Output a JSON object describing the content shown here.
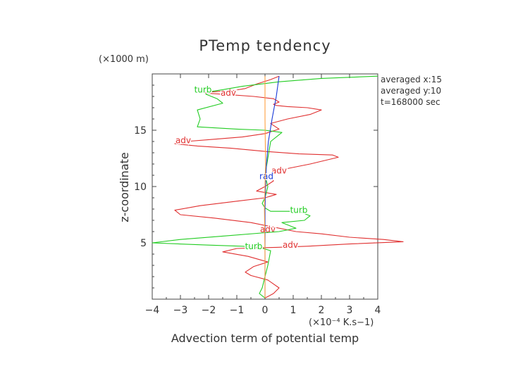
{
  "chart_data": {
    "type": "line",
    "title": "PTemp tendency",
    "xlabel": "Advection term of potential temp",
    "ylabel": "z-coordinate",
    "x_unit": "(×10⁻⁴ K.s−1)",
    "y_unit": "(×1000 m)",
    "xlim": [
      -4,
      4
    ],
    "ylim": [
      0,
      20
    ],
    "x_ticks": [
      "−4",
      "−3",
      "−2",
      "−1",
      "0",
      "1",
      "2",
      "3",
      "4"
    ],
    "y_ticks": [
      "5",
      "10",
      "15"
    ],
    "info": [
      "averaged  x:15",
      "averaged  y:10",
      "t=168000 sec"
    ],
    "series": [
      {
        "name": "adv",
        "color": "#e03030",
        "x": [
          0.5,
          0.2,
          -0.3,
          -0.7,
          -1.2,
          -1.9,
          -2.2,
          -1.5,
          -0.4,
          0.3,
          0.5,
          0.3,
          0.4,
          0.8,
          1.5,
          2.0,
          1.6,
          0.8,
          0.2,
          0.5,
          0.0,
          -0.8,
          -1.8,
          -2.8,
          -3.2,
          -2.4,
          -1.2,
          0.1,
          1.2,
          2.4,
          2.6,
          1.6,
          0.6,
          0.2,
          0.3,
          0.0,
          -0.3,
          0.4,
          0.0,
          -1.0,
          -2.3,
          -3.2,
          -3.0,
          -1.8,
          -0.5,
          0.3,
          1.1,
          2.0,
          3.0,
          4.2,
          4.9,
          3.0,
          1.5,
          0.4,
          -1.0,
          -1.5,
          -0.6,
          0.1,
          -0.4,
          -0.7,
          -0.5,
          0.1,
          0.5,
          0.3,
          0.0
        ],
        "y": [
          19.8,
          19.5,
          19.1,
          18.7,
          18.5,
          18.4,
          18.3,
          18.2,
          18.0,
          17.8,
          17.5,
          17.3,
          17.2,
          17.1,
          17.0,
          16.8,
          16.4,
          16.0,
          15.6,
          15.1,
          14.7,
          14.4,
          14.2,
          14.0,
          13.8,
          13.6,
          13.4,
          13.1,
          12.9,
          12.8,
          12.6,
          12.0,
          11.5,
          11.0,
          10.5,
          10.0,
          9.6,
          9.3,
          9.0,
          8.7,
          8.3,
          7.9,
          7.5,
          7.2,
          6.8,
          6.4,
          6.0,
          5.8,
          5.5,
          5.3,
          5.1,
          4.9,
          4.7,
          4.6,
          4.5,
          4.2,
          3.8,
          3.3,
          2.9,
          2.4,
          2.1,
          1.7,
          1.0,
          0.5,
          0.1
        ],
        "labels": [
          {
            "x": -1.3,
            "y": 18.3
          },
          {
            "x": -2.9,
            "y": 14.1
          },
          {
            "x": 0.5,
            "y": 11.4
          },
          {
            "x": 0.1,
            "y": 6.2
          },
          {
            "x": 0.9,
            "y": 4.8
          }
        ]
      },
      {
        "name": "turb",
        "color": "#22cc22",
        "x": [
          4.0,
          2.0,
          0.5,
          -0.8,
          -1.5,
          -2.0,
          -2.1,
          -1.7,
          -1.5,
          -2.4,
          -2.3,
          -2.4,
          -1.0,
          0.0,
          0.6,
          0.2,
          0.1,
          0.0,
          0.1,
          0.0,
          -0.1,
          0.0,
          0.2,
          1.2,
          1.6,
          1.4,
          0.6,
          1.1,
          0.5,
          -1.5,
          -3.0,
          -4.0,
          -2.0,
          -0.8,
          -0.2,
          0.2,
          0.1,
          0.0,
          -0.1,
          -0.2,
          0.0
        ],
        "y": [
          19.8,
          19.6,
          19.3,
          18.9,
          18.6,
          18.4,
          18.2,
          17.8,
          17.4,
          16.8,
          16.0,
          15.3,
          15.1,
          15.0,
          14.8,
          14.0,
          12.5,
          11.0,
          10.0,
          9.0,
          8.5,
          8.1,
          7.8,
          7.8,
          7.4,
          7.0,
          6.8,
          6.3,
          6.0,
          5.6,
          5.3,
          5.0,
          4.8,
          4.7,
          4.6,
          4.3,
          3.0,
          2.0,
          1.0,
          0.5,
          0.1
        ],
        "labels": [
          {
            "x": -2.2,
            "y": 18.6
          },
          {
            "x": 1.2,
            "y": 7.9
          },
          {
            "x": -0.4,
            "y": 4.7
          }
        ]
      },
      {
        "name": "rad",
        "color": "#1a3bd8",
        "x": [
          0.5,
          0.4,
          0.25,
          0.12,
          0.05,
          0.02,
          0.0,
          0.0,
          0.0
        ],
        "y": [
          19.8,
          18.0,
          16.0,
          14.0,
          12.0,
          10.0,
          8.0,
          4.0,
          0.1
        ],
        "labels": [
          {
            "x": 0.05,
            "y": 10.9
          }
        ]
      },
      {
        "name": "",
        "color": "#ffa040",
        "x": [
          0.0,
          0.0,
          0.02,
          0.0,
          -0.02,
          0.0,
          0.0
        ],
        "y": [
          19.8,
          16.0,
          12.0,
          10.0,
          8.0,
          4.0,
          0.1
        ],
        "labels": []
      }
    ]
  }
}
